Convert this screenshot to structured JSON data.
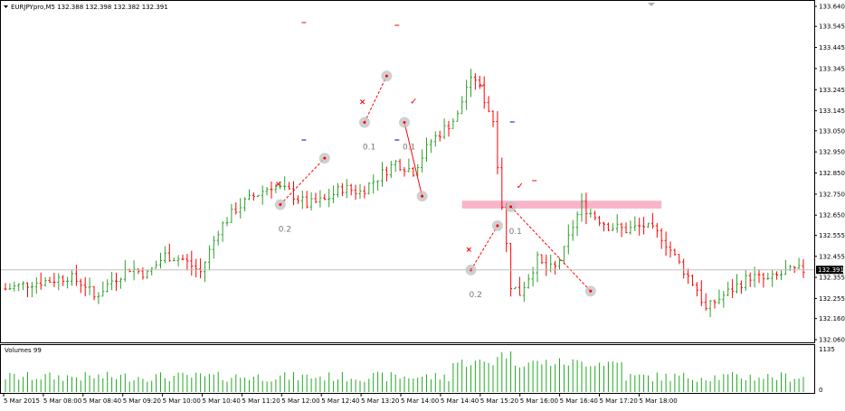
{
  "symbol_header": "EURJPYpro,M5  132.388 132.398 132.382 132.391",
  "volume_header": "Volumes 99",
  "current_price_label": "132.391",
  "volume_axis": {
    "max_label": "1135",
    "min_label": "0"
  },
  "colors": {
    "bull": "#2ca02c",
    "bear": "#ff0000",
    "marker": "#c0c0c0",
    "zone": "#f7a8bf",
    "volume": "#22aa22",
    "blue_dash": "#0000cc"
  },
  "chart_data": {
    "type": "ohlc",
    "symbol": "EURJPYpro",
    "timeframe": "M5",
    "ylim": [
      132.06,
      133.64
    ],
    "y_ticks": [
      "133.640",
      "133.545",
      "133.445",
      "133.345",
      "133.245",
      "133.145",
      "133.050",
      "132.950",
      "132.850",
      "132.750",
      "132.650",
      "132.555",
      "132.455",
      "132.355",
      "132.255",
      "132.160",
      "132.060"
    ],
    "x_ticks": [
      "5 Mar 2015",
      "5 Mar 08:00",
      "5 Mar 08:40",
      "5 Mar 09:20",
      "5 Mar 10:00",
      "5 Mar 10:40",
      "5 Mar 11:20",
      "5 Mar 12:00",
      "5 Mar 12:40",
      "5 Mar 13:20",
      "5 Mar 14:00",
      "5 Mar 14:40",
      "5 Mar 15:20",
      "5 Mar 16:00",
      "5 Mar 16:40",
      "5 Mar 17:20",
      "5 Mar 18:00"
    ],
    "current_price": 132.391,
    "close_path": [
      [
        0,
        132.3
      ],
      [
        6,
        132.33
      ],
      [
        10,
        132.34
      ],
      [
        14,
        132.36
      ],
      [
        18,
        132.32
      ],
      [
        20,
        132.26
      ],
      [
        24,
        132.34
      ],
      [
        28,
        132.4
      ],
      [
        32,
        132.37
      ],
      [
        36,
        132.46
      ],
      [
        40,
        132.44
      ],
      [
        44,
        132.38
      ],
      [
        48,
        132.58
      ],
      [
        52,
        132.68
      ],
      [
        56,
        132.74
      ],
      [
        60,
        132.79
      ],
      [
        64,
        132.76
      ],
      [
        68,
        132.7
      ],
      [
        72,
        132.72
      ],
      [
        76,
        132.78
      ],
      [
        80,
        132.76
      ],
      [
        84,
        132.83
      ],
      [
        88,
        132.9
      ],
      [
        92,
        132.86
      ],
      [
        96,
        133.0
      ],
      [
        100,
        133.08
      ],
      [
        102,
        133.12
      ],
      [
        104,
        133.26
      ],
      [
        106,
        133.3
      ],
      [
        108,
        133.2
      ],
      [
        110,
        133.1
      ],
      [
        112,
        132.7
      ],
      [
        114,
        132.32
      ],
      [
        116,
        132.28
      ],
      [
        118,
        132.36
      ],
      [
        120,
        132.44
      ],
      [
        122,
        132.39
      ],
      [
        124,
        132.4
      ],
      [
        126,
        132.48
      ],
      [
        128,
        132.6
      ],
      [
        130,
        132.7
      ],
      [
        132,
        132.66
      ],
      [
        136,
        132.6
      ],
      [
        140,
        132.58
      ],
      [
        144,
        132.6
      ],
      [
        148,
        132.55
      ],
      [
        152,
        132.42
      ],
      [
        156,
        132.3
      ],
      [
        158,
        132.2
      ],
      [
        160,
        132.24
      ],
      [
        164,
        132.3
      ],
      [
        168,
        132.36
      ],
      [
        172,
        132.34
      ],
      [
        176,
        132.38
      ],
      [
        180,
        132.39
      ]
    ],
    "markers": [
      {
        "t": 1,
        "price": 132.7,
        "label": "0.2",
        "flag": "x"
      },
      {
        "t": 2,
        "price": 132.92,
        "label": "",
        "flag": ""
      },
      {
        "t": 3,
        "price": 133.09,
        "label": "0.1",
        "flag": "x"
      },
      {
        "t": 4,
        "price": 133.31,
        "label": "",
        "flag": ""
      },
      {
        "t": 5,
        "price": 133.09,
        "label": "0.1",
        "flag": "check"
      },
      {
        "t": 6,
        "price": 132.74,
        "label": "",
        "flag": ""
      },
      {
        "t": 7,
        "price": 132.39,
        "label": "0.2",
        "flag": "x"
      },
      {
        "t": 8,
        "price": 132.6,
        "label": "",
        "flag": ""
      },
      {
        "t": 9,
        "price": 132.69,
        "label": "0.1",
        "flag": "check"
      },
      {
        "t": 10,
        "price": 132.29,
        "label": "",
        "flag": ""
      }
    ],
    "zone": {
      "price_top": 132.71,
      "price_bottom": 132.69
    },
    "volumes_max": 1135
  }
}
